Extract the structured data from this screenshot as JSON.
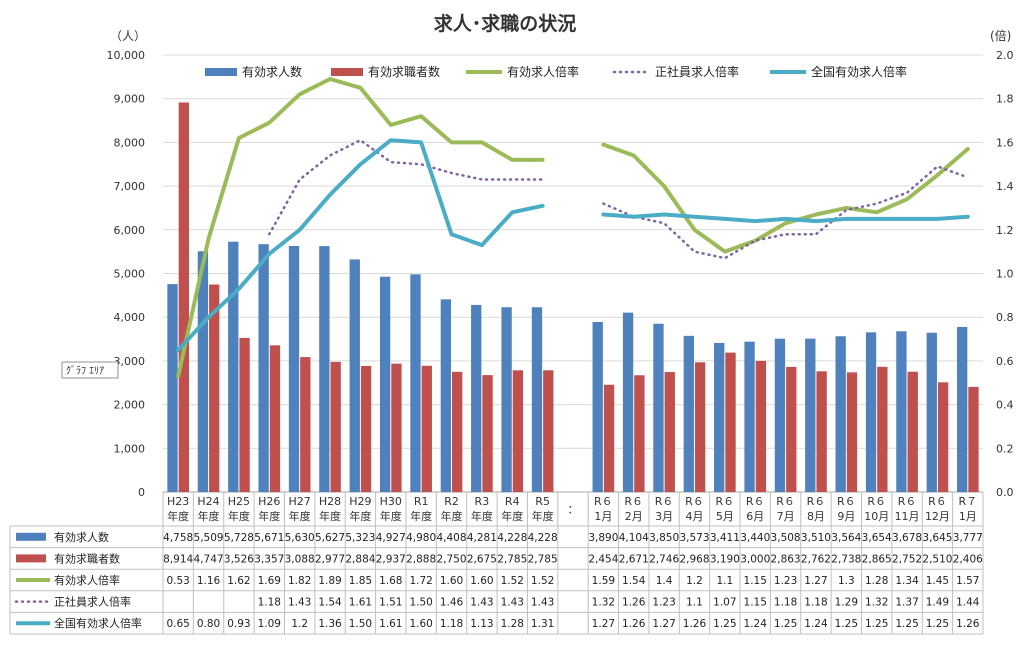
{
  "chart_data": {
    "type": "bar",
    "title": "求人･求職の状況",
    "left_unit": "（人）",
    "right_unit": "(倍)",
    "left_ticks": [
      "0",
      "1,000",
      "2,000",
      "3,000",
      "4,000",
      "5,000",
      "6,000",
      "7,000",
      "8,000",
      "9,000",
      "10,000"
    ],
    "right_ticks": [
      "0.0",
      "0.2",
      "0.4",
      "0.6",
      "0.8",
      "1.0",
      "1.2",
      "1.4",
      "1.6",
      "1.8",
      "2.0"
    ],
    "ylim_left": [
      0,
      10000
    ],
    "ylim_right": [
      0,
      2.0
    ],
    "gap_label": "：",
    "tooltip": "ｸﾞﾗﾌ ｴﾘｱ",
    "categories": [
      {
        "l1": "H23",
        "l2": "年度"
      },
      {
        "l1": "H24",
        "l2": "年度"
      },
      {
        "l1": "H25",
        "l2": "年度"
      },
      {
        "l1": "H26",
        "l2": "年度"
      },
      {
        "l1": "H27",
        "l2": "年度"
      },
      {
        "l1": "H28",
        "l2": "年度"
      },
      {
        "l1": "H29",
        "l2": "年度"
      },
      {
        "l1": "H30",
        "l2": "年度"
      },
      {
        "l1": "R1",
        "l2": "年度"
      },
      {
        "l1": "R2",
        "l2": "年度"
      },
      {
        "l1": "R3",
        "l2": "年度"
      },
      {
        "l1": "R4",
        "l2": "年度"
      },
      {
        "l1": "R5",
        "l2": "年度"
      },
      {
        "l1": "",
        "l2": ""
      },
      {
        "l1": "R６",
        "l2": "1月"
      },
      {
        "l1": "R６",
        "l2": "2月"
      },
      {
        "l1": "R６",
        "l2": "3月"
      },
      {
        "l1": "R６",
        "l2": "4月"
      },
      {
        "l1": "R６",
        "l2": "5月"
      },
      {
        "l1": "R６",
        "l2": "6月"
      },
      {
        "l1": "R６",
        "l2": "7月"
      },
      {
        "l1": "R６",
        "l2": "8月"
      },
      {
        "l1": "R６",
        "l2": "9月"
      },
      {
        "l1": "R６",
        "l2": "10月"
      },
      {
        "l1": "R６",
        "l2": "11月"
      },
      {
        "l1": "R６",
        "l2": "12月"
      },
      {
        "l1": "R７",
        "l2": "1月"
      }
    ],
    "series": [
      {
        "name": "有効求人数",
        "type": "bar",
        "axis": "left",
        "color": "#4F81BD",
        "values": [
          4758,
          5509,
          5728,
          5671,
          5630,
          5627,
          5323,
          4927,
          4980,
          4408,
          4281,
          4228,
          4228,
          null,
          3890,
          4104,
          3850,
          3573,
          3411,
          3440,
          3508,
          3510,
          3564,
          3654,
          3678,
          3645,
          3777
        ],
        "labels": [
          "4,758",
          "5,509",
          "5,728",
          "5,671",
          "5,630",
          "5,627",
          "5,323",
          "4,927",
          "4,980",
          "4,408",
          "4,281",
          "4,228",
          "4,228",
          "",
          "3,890",
          "4,104",
          "3,850",
          "3,573",
          "3,411",
          "3,440",
          "3,508",
          "3,510",
          "3,564",
          "3,654",
          "3,678",
          "3,645",
          "3,777"
        ]
      },
      {
        "name": "有効求職者数",
        "type": "bar",
        "axis": "left",
        "color": "#C0504D",
        "values": [
          8914,
          4747,
          3526,
          3357,
          3088,
          2977,
          2884,
          2937,
          2888,
          2750,
          2675,
          2785,
          2785,
          null,
          2454,
          2671,
          2746,
          2968,
          3190,
          3000,
          2863,
          2762,
          2738,
          2865,
          2752,
          2510,
          2406
        ],
        "labels": [
          "8,914",
          "4,747",
          "3,526",
          "3,357",
          "3,088",
          "2,977",
          "2,884",
          "2,937",
          "2,888",
          "2,750",
          "2,675",
          "2,785",
          "2,785",
          "",
          "2,454",
          "2,671",
          "2,746",
          "2,968",
          "3,190",
          "3,000",
          "2,863",
          "2,762",
          "2,738",
          "2,865",
          "2,752",
          "2,510",
          "2,406"
        ]
      },
      {
        "name": "有効求人倍率",
        "type": "line",
        "axis": "right",
        "color": "#9BBB59",
        "dash": "solid",
        "values": [
          0.53,
          1.16,
          1.62,
          1.69,
          1.82,
          1.89,
          1.85,
          1.68,
          1.72,
          1.6,
          1.6,
          1.52,
          1.52,
          null,
          1.59,
          1.54,
          1.4,
          1.2,
          1.1,
          1.15,
          1.23,
          1.27,
          1.3,
          1.28,
          1.34,
          1.45,
          1.57
        ],
        "labels": [
          "0.53",
          "1.16",
          "1.62",
          "1.69",
          "1.82",
          "1.89",
          "1.85",
          "1.68",
          "1.72",
          "1.60",
          "1.60",
          "1.52",
          "1.52",
          "",
          "1.59",
          "1.54",
          "1.4",
          "1.2",
          "1.1",
          "1.15",
          "1.23",
          "1.27",
          "1.3",
          "1.28",
          "1.34",
          "1.45",
          "1.57"
        ]
      },
      {
        "name": "正社員求人倍率",
        "type": "line",
        "axis": "right",
        "color": "#8064A2",
        "dash": "dotted",
        "values": [
          null,
          null,
          null,
          1.18,
          1.43,
          1.54,
          1.61,
          1.51,
          1.5,
          1.46,
          1.43,
          1.43,
          1.43,
          null,
          1.32,
          1.26,
          1.23,
          1.1,
          1.07,
          1.15,
          1.18,
          1.18,
          1.29,
          1.32,
          1.37,
          1.49,
          1.44
        ],
        "labels": [
          "",
          "",
          "",
          "1.18",
          "1.43",
          "1.54",
          "1.61",
          "1.51",
          "1.50",
          "1.46",
          "1.43",
          "1.43",
          "1.43",
          "",
          "1.32",
          "1.26",
          "1.23",
          "1.1",
          "1.07",
          "1.15",
          "1.18",
          "1.18",
          "1.29",
          "1.32",
          "1.37",
          "1.49",
          "1.44"
        ]
      },
      {
        "name": "全国有効求人倍率",
        "type": "line",
        "axis": "right",
        "color": "#4BACC6",
        "dash": "solid",
        "values": [
          0.65,
          0.8,
          0.93,
          1.09,
          1.2,
          1.36,
          1.5,
          1.61,
          1.6,
          1.18,
          1.13,
          1.28,
          1.31,
          null,
          1.27,
          1.26,
          1.27,
          1.26,
          1.25,
          1.24,
          1.25,
          1.24,
          1.25,
          1.25,
          1.25,
          1.25,
          1.26
        ],
        "labels": [
          "0.65",
          "0.80",
          "0.93",
          "1.09",
          "1.2",
          "1.36",
          "1.50",
          "1.61",
          "1.60",
          "1.18",
          "1.13",
          "1.28",
          "1.31",
          "",
          "1.27",
          "1.26",
          "1.27",
          "1.26",
          "1.25",
          "1.24",
          "1.25",
          "1.24",
          "1.25",
          "1.25",
          "1.25",
          "1.25",
          "1.26"
        ]
      }
    ]
  }
}
